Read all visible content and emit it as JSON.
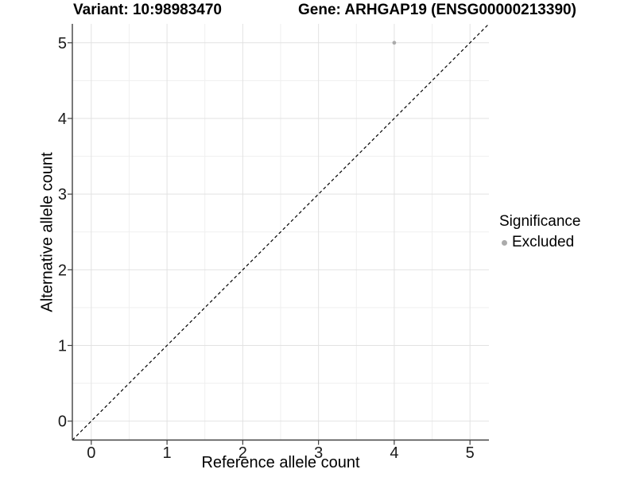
{
  "titles": {
    "variant": "Variant: 10:98983470",
    "gene": "Gene: ARHGAP19 (ENSG00000213390)"
  },
  "chart_data": {
    "type": "scatter",
    "xlabel": "Reference allele count",
    "ylabel": "Alternative allele count",
    "xlim": [
      -0.25,
      5.25
    ],
    "ylim": [
      -0.25,
      5.25
    ],
    "xticks": [
      0,
      1,
      2,
      3,
      4,
      5
    ],
    "yticks": [
      0,
      1,
      2,
      3,
      4,
      5
    ],
    "minor_ticks_x": [
      0.5,
      1.5,
      2.5,
      3.5,
      4.5
    ],
    "minor_ticks_y": [
      0.5,
      1.5,
      2.5,
      3.5,
      4.5
    ],
    "grid": "major+minor",
    "identity_line": {
      "slope": 1,
      "intercept": 0,
      "style": "dashed",
      "color": "#000000"
    },
    "series": [
      {
        "name": "Excluded",
        "color": "#ababab",
        "point_radius": 2.4,
        "points": [
          {
            "x": 4,
            "y": 5
          }
        ]
      }
    ],
    "colors": {
      "grid_major": "#e2e2e2",
      "grid_minor": "#efefef",
      "axis_line": "#404040",
      "tick_mark": "#404040",
      "tick_label": "#1a1a1a"
    }
  },
  "legend": {
    "title": "Significance",
    "items": [
      {
        "label": "Excluded",
        "color": "#ababab"
      }
    ]
  }
}
